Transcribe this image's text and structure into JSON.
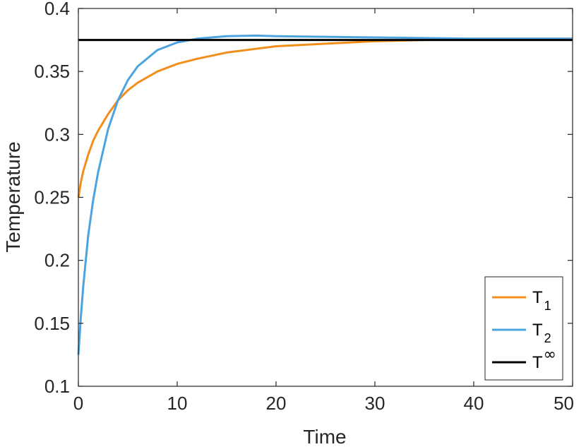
{
  "chart_data": {
    "type": "line",
    "xlabel": "Time",
    "ylabel": "Temperature",
    "xlim": [
      0,
      50
    ],
    "ylim": [
      0.1,
      0.4
    ],
    "xticks": [
      "0",
      "10",
      "20",
      "30",
      "40",
      "50"
    ],
    "yticks": [
      "0.1",
      "0.15",
      "0.2",
      "0.25",
      "0.3",
      "0.35",
      "0.4"
    ],
    "grid": false,
    "legend_position": "bottom-right",
    "series": [
      {
        "name": "T1",
        "label_main": "T",
        "label_sub": "1",
        "color": "#F28E1C",
        "x": [
          0,
          0.25,
          0.5,
          1,
          1.5,
          2,
          3,
          4,
          5,
          6,
          8,
          10,
          12,
          15,
          18,
          20,
          25,
          30,
          35,
          40,
          45,
          50
        ],
        "y": [
          0.25,
          0.262,
          0.271,
          0.284,
          0.295,
          0.303,
          0.316,
          0.327,
          0.335,
          0.341,
          0.35,
          0.356,
          0.36,
          0.365,
          0.368,
          0.37,
          0.372,
          0.374,
          0.375,
          0.376,
          0.376,
          0.376
        ]
      },
      {
        "name": "T2",
        "label_main": "T",
        "label_sub": "2",
        "color": "#4DA3DF",
        "x": [
          0,
          0.25,
          0.5,
          1,
          1.5,
          2,
          3,
          4,
          5,
          6,
          8,
          10,
          12,
          15,
          18,
          20,
          25,
          30,
          35,
          40,
          45,
          50
        ],
        "y": [
          0.125,
          0.155,
          0.18,
          0.22,
          0.248,
          0.27,
          0.304,
          0.327,
          0.343,
          0.354,
          0.367,
          0.373,
          0.376,
          0.378,
          0.3785,
          0.378,
          0.3775,
          0.377,
          0.3765,
          0.376,
          0.376,
          0.376
        ]
      },
      {
        "name": "T∞",
        "label_main": "T",
        "label_sup": "∞",
        "color": "#000000",
        "x": [
          0,
          50
        ],
        "y": [
          0.375,
          0.375
        ]
      }
    ]
  }
}
